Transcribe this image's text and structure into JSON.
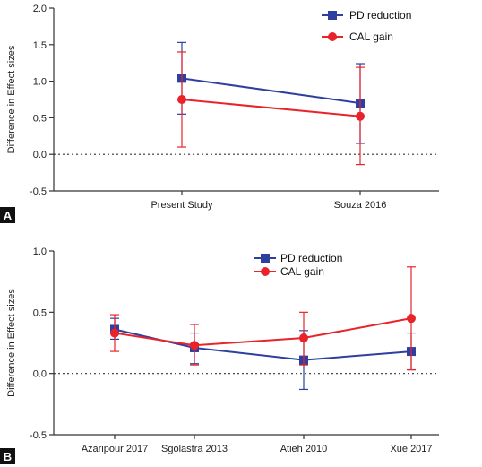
{
  "chart_data": [
    {
      "type": "line",
      "panel_label": "A",
      "ylabel": "Difference in Effect sizes",
      "xlabel": "",
      "categories": [
        "Present Study",
        "Souza 2016"
      ],
      "ylim": [
        -0.5,
        2.0
      ],
      "yticks": [
        -0.5,
        0.0,
        0.5,
        1.0,
        1.5,
        2.0
      ],
      "ytick_labels": [
        "-0.5",
        "0.0",
        "0.5",
        "1.0",
        "1.5",
        "2.0"
      ],
      "reference_line": 0.0,
      "legend_position": "top-right",
      "series": [
        {
          "name": "PD reduction",
          "color": "#2e3fa0",
          "marker": "square",
          "values": [
            1.04,
            0.7
          ],
          "lower": [
            0.55,
            0.15
          ],
          "upper": [
            1.53,
            1.24
          ]
        },
        {
          "name": "CAL gain",
          "color": "#e8232a",
          "marker": "circle",
          "values": [
            0.75,
            0.52
          ],
          "lower": [
            0.1,
            -0.14
          ],
          "upper": [
            1.4,
            1.19
          ]
        }
      ]
    },
    {
      "type": "line",
      "panel_label": "B",
      "ylabel": "Difference in Effect sizes",
      "xlabel": "",
      "categories": [
        "Azaripour 2017",
        "Sgolastra 2013",
        "Atieh 2010",
        "Xue 2017"
      ],
      "ylim": [
        -0.5,
        1.0
      ],
      "yticks": [
        -0.5,
        0.0,
        0.5,
        1.0
      ],
      "ytick_labels": [
        "-0.5",
        "0.0",
        "0.5",
        "1.0"
      ],
      "reference_line": 0.0,
      "legend_position": "top-right",
      "series": [
        {
          "name": "PD reduction",
          "color": "#2e3fa0",
          "marker": "square",
          "values": [
            0.36,
            0.21,
            0.11,
            0.18
          ],
          "lower": [
            0.28,
            0.08,
            -0.13,
            0.03
          ],
          "upper": [
            0.45,
            0.33,
            0.35,
            0.33
          ]
        },
        {
          "name": "CAL gain",
          "color": "#e8232a",
          "marker": "circle",
          "values": [
            0.33,
            0.23,
            0.29,
            0.45
          ],
          "lower": [
            0.18,
            0.07,
            0.07,
            0.03
          ],
          "upper": [
            0.48,
            0.4,
            0.5,
            0.87
          ]
        }
      ]
    }
  ]
}
